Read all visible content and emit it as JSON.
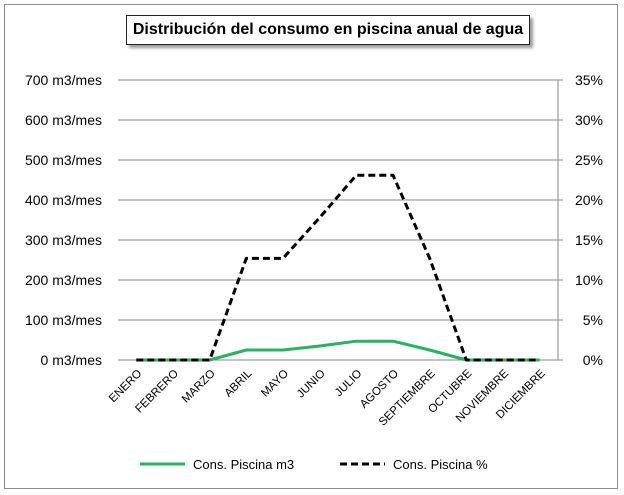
{
  "chart_data": {
    "type": "line",
    "title": "Distribución del consumo en piscina anual de agua",
    "categories": [
      "ENERO",
      "FEBRERO",
      "MARZO",
      "ABRIL",
      "MAYO",
      "JUNIO",
      "JULIO",
      "AGOSTO",
      "SEPTIEMBRE",
      "OCTUBRE",
      "NOVIEMBRE",
      "DICIEMBRE"
    ],
    "y_left": {
      "ylim": [
        0,
        700
      ],
      "ticks": [
        0,
        100,
        200,
        300,
        400,
        500,
        600,
        700
      ],
      "tick_labels": [
        "0 m3/mes",
        "100 m3/mes",
        "200 m3/mes",
        "300 m3/mes",
        "400 m3/mes",
        "500 m3/mes",
        "600 m3/mes",
        "700 m3/mes"
      ]
    },
    "y_right": {
      "ylim": [
        0,
        35
      ],
      "ticks": [
        0,
        5,
        10,
        15,
        20,
        25,
        30,
        35
      ],
      "tick_labels": [
        "0%",
        "5%",
        "10%",
        "15%",
        "20%",
        "25%",
        "30%",
        "35%"
      ]
    },
    "series": [
      {
        "name": "Cons. Piscina m3",
        "axis": "left",
        "color": "#27b35f",
        "style": "solid",
        "values": [
          0,
          0,
          0,
          25,
          25,
          35,
          47,
          47,
          25,
          0,
          0,
          0
        ]
      },
      {
        "name": "Cons. Piscina %",
        "axis": "right",
        "color": "#000000",
        "style": "dashed",
        "values": [
          0,
          0,
          0,
          12.7,
          12.7,
          17.8,
          23.1,
          23.1,
          12.7,
          0,
          0,
          0
        ]
      }
    ],
    "grid": true,
    "legend": "bottom"
  }
}
